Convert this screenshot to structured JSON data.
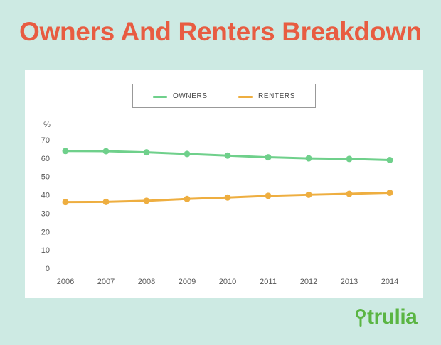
{
  "header": {
    "title": "Owners And Renters Breakdown"
  },
  "brand": {
    "logo_text": "trulia",
    "accent": "#5ab543"
  },
  "colors": {
    "background": "#cdeae3",
    "title": "#e85c41",
    "owners": "#6fd08b",
    "renters": "#eeae40",
    "axis_text": "#555555"
  },
  "chart_data": {
    "type": "line",
    "ylabel": "%",
    "ylim": [
      0,
      70
    ],
    "yticks": [
      0,
      10,
      20,
      30,
      40,
      50,
      60,
      70
    ],
    "x": [
      "2006",
      "2007",
      "2008",
      "2009",
      "2010",
      "2011",
      "2012",
      "2013",
      "2014"
    ],
    "grid": false,
    "legend_position": "top-center",
    "series": [
      {
        "name": "OWNERS",
        "values": [
          63.9,
          63.8,
          63.2,
          62.3,
          61.4,
          60.5,
          59.9,
          59.6,
          59.0
        ]
      },
      {
        "name": "RENTERS",
        "values": [
          36.1,
          36.2,
          36.8,
          37.8,
          38.6,
          39.5,
          40.1,
          40.6,
          41.2
        ]
      }
    ]
  }
}
